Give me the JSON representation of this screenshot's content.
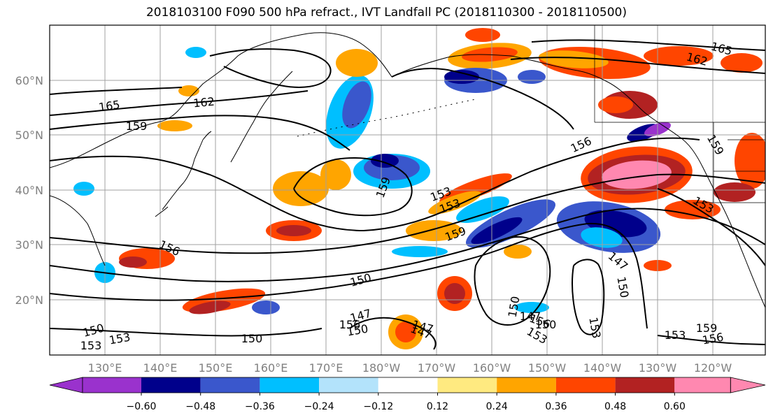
{
  "title": "2018103100 F090 500 hPa refract., IVT Landfall PC (2018110300 - 2018110500)",
  "latitude_labels": [
    "60°N",
    "50°N",
    "40°N",
    "30°N",
    "20°N"
  ],
  "longitude_labels": [
    "130°E",
    "140°E",
    "150°E",
    "160°E",
    "170°E",
    "180°W",
    "170°W",
    "160°W",
    "150°W",
    "140°W",
    "130°W",
    "120°W"
  ],
  "colorbar": {
    "colors": [
      "#9a32cd",
      "#00008b",
      "#3a57cc",
      "#00bfff",
      "#b3e3fb",
      "#ffffff",
      "#ffea80",
      "#ffa500",
      "#ff4500",
      "#b22222",
      "#ff88b0"
    ],
    "tick_labels": [
      "-0.60",
      "-0.48",
      "-0.36",
      "-0.24",
      "-0.12",
      "0.12",
      "0.24",
      "0.36",
      "0.48",
      "0.60"
    ]
  },
  "contour_labels": [
    "165",
    "162",
    "159",
    "156",
    "153",
    "150",
    "147",
    "159",
    "153",
    "159",
    "153",
    "150",
    "147",
    "150",
    "153",
    "147",
    "150",
    "147",
    "153",
    "156",
    "165",
    "162",
    "156",
    "159",
    "150",
    "147",
    "153",
    "150",
    "153",
    "156",
    "159",
    "156",
    "150",
    "153"
  ]
}
